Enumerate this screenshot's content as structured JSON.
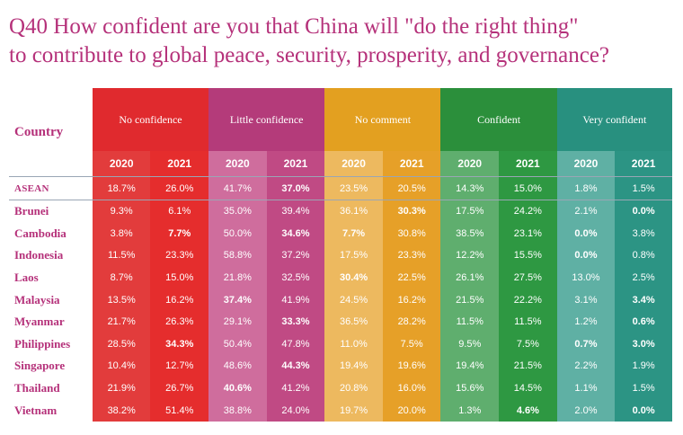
{
  "title": {
    "line1": "Q40 How confident are you that China will \"do the right thing\"",
    "line2": "to contribute to global peace, security, prosperity, and governance?"
  },
  "table": {
    "country_header": "Country",
    "categories": [
      "No confidence",
      "Little confidence",
      "No comment",
      "Confident",
      "Very confident"
    ],
    "years": [
      "2020",
      "2021"
    ],
    "category_colors": [
      "#e02a2e",
      "#b43b7a",
      "#e3a020",
      "#2b8f3b",
      "#28907f"
    ],
    "rows": [
      {
        "country": "ASEAN",
        "values": [
          "18.7%",
          "26.0%",
          "41.7%",
          "37.0%",
          "23.5%",
          "20.5%",
          "14.3%",
          "15.0%",
          "1.8%",
          "1.5%"
        ],
        "bold": [
          3
        ]
      },
      {
        "country": "Brunei",
        "values": [
          "9.3%",
          "6.1%",
          "35.0%",
          "39.4%",
          "36.1%",
          "30.3%",
          "17.5%",
          "24.2%",
          "2.1%",
          "0.0%"
        ],
        "bold": [
          5,
          9
        ]
      },
      {
        "country": "Cambodia",
        "values": [
          "3.8%",
          "7.7%",
          "50.0%",
          "34.6%",
          "7.7%",
          "30.8%",
          "38.5%",
          "23.1%",
          "0.0%",
          "3.8%"
        ],
        "bold": [
          1,
          3,
          4,
          8
        ]
      },
      {
        "country": "Indonesia",
        "values": [
          "11.5%",
          "23.3%",
          "58.8%",
          "37.2%",
          "17.5%",
          "23.3%",
          "12.2%",
          "15.5%",
          "0.0%",
          "0.8%"
        ],
        "bold": [
          8
        ]
      },
      {
        "country": "Laos",
        "values": [
          "8.7%",
          "15.0%",
          "21.8%",
          "32.5%",
          "30.4%",
          "22.5%",
          "26.1%",
          "27.5%",
          "13.0%",
          "2.5%"
        ],
        "bold": [
          4
        ]
      },
      {
        "country": "Malaysia",
        "values": [
          "13.5%",
          "16.2%",
          "37.4%",
          "41.9%",
          "24.5%",
          "16.2%",
          "21.5%",
          "22.2%",
          "3.1%",
          "3.4%"
        ],
        "bold": [
          2,
          9
        ]
      },
      {
        "country": "Myanmar",
        "values": [
          "21.7%",
          "26.3%",
          "29.1%",
          "33.3%",
          "36.5%",
          "28.2%",
          "11.5%",
          "11.5%",
          "1.2%",
          "0.6%"
        ],
        "bold": [
          3,
          9
        ]
      },
      {
        "country": "Philippines",
        "values": [
          "28.5%",
          "34.3%",
          "50.4%",
          "47.8%",
          "11.0%",
          "7.5%",
          "9.5%",
          "7.5%",
          "0.7%",
          "3.0%"
        ],
        "bold": [
          1,
          8,
          9
        ]
      },
      {
        "country": "Singapore",
        "values": [
          "10.4%",
          "12.7%",
          "48.6%",
          "44.3%",
          "19.4%",
          "19.6%",
          "19.4%",
          "21.5%",
          "2.2%",
          "1.9%"
        ],
        "bold": [
          3
        ]
      },
      {
        "country": "Thailand",
        "values": [
          "21.9%",
          "26.7%",
          "40.6%",
          "41.2%",
          "20.8%",
          "16.0%",
          "15.6%",
          "14.5%",
          "1.1%",
          "1.5%"
        ],
        "bold": [
          2
        ]
      },
      {
        "country": "Vietnam",
        "values": [
          "38.2%",
          "51.4%",
          "38.8%",
          "24.0%",
          "19.7%",
          "20.0%",
          "1.3%",
          "4.6%",
          "2.0%",
          "0.0%"
        ],
        "bold": [
          7,
          9
        ]
      }
    ]
  }
}
